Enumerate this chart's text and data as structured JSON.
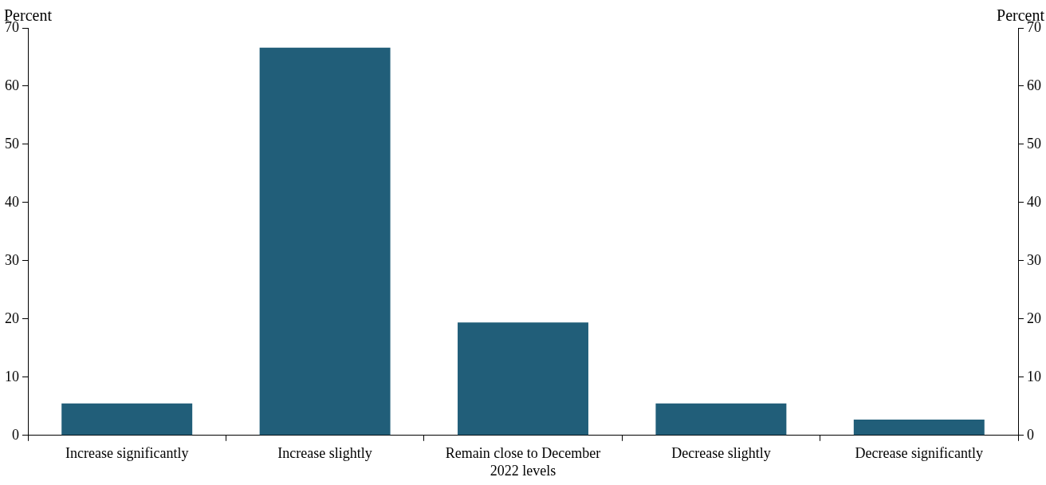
{
  "chart_data": {
    "type": "bar",
    "ylabel": "Percent",
    "y2label": "Percent",
    "categories": [
      "Increase significantly",
      "Increase slightly",
      "Remain close to December 2022 levels",
      "Decrease slightly",
      "Decrease significantly"
    ],
    "values": [
      5.5,
      66.6,
      19.4,
      5.5,
      2.7
    ],
    "color": "#215e79",
    "ylim": [
      0,
      70
    ],
    "yticks": [
      0,
      10,
      20,
      30,
      40,
      50,
      60,
      70
    ],
    "y2lim": [
      0,
      70
    ],
    "y2ticks": [
      0,
      10,
      20,
      30,
      40,
      50,
      60,
      70
    ],
    "grid": false,
    "legend": false
  }
}
